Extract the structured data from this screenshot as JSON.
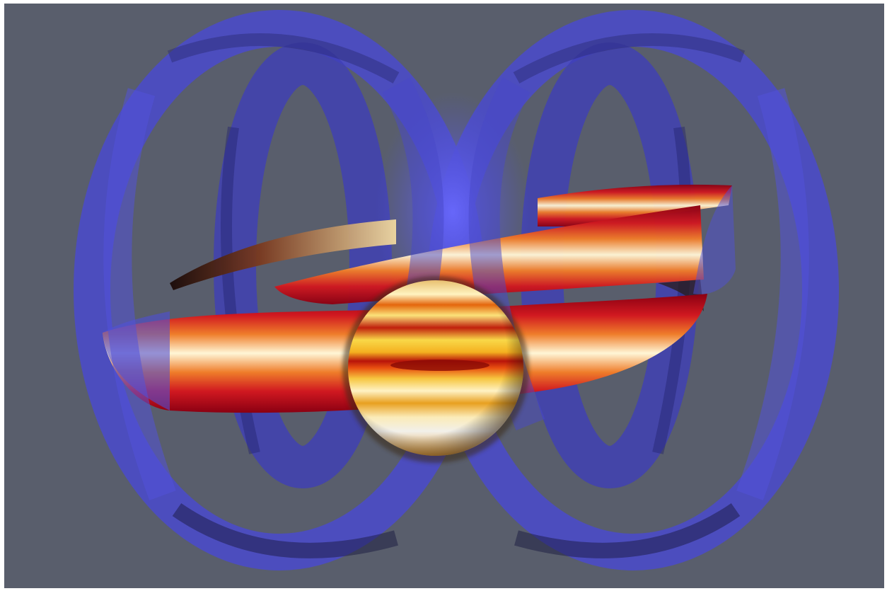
{
  "scene": {
    "background_color": "#595e6c",
    "frame_color": "#ffffff",
    "torus_color": "#4f4fd6",
    "torus_edge_color": "#3a3ab8",
    "ribbon_colors": [
      "#7a0010",
      "#c8141e",
      "#e8641e",
      "#f5d27a",
      "#fff6d8"
    ],
    "sphere_colors": [
      "#fff4c8",
      "#f7d04a",
      "#e8a010",
      "#c81e0a",
      "#8a0a05"
    ]
  },
  "objects": {
    "left_torus": {
      "name": "left-torus-ring",
      "color_ref": "torus_color"
    },
    "right_torus": {
      "name": "right-torus-ring",
      "color_ref": "torus_color"
    },
    "ribbon": {
      "name": "helical-ribbon",
      "colormap": "hot"
    },
    "sphere": {
      "name": "central-sphere",
      "colormap": "hot"
    }
  }
}
